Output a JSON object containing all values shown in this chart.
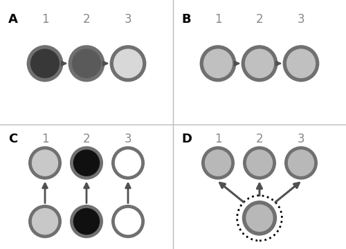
{
  "bg_color": "#ffffff",
  "label_color": "#888888",
  "arrow_color": "#505050",
  "A_fill_colors": [
    "#383838",
    "#5a5a5a",
    "#d8d8d8"
  ],
  "A_ring_color": "#707070",
  "B_fill_colors": [
    "#c0c0c0",
    "#c0c0c0",
    "#c0c0c0"
  ],
  "B_ring_color": "#707070",
  "C_top_fills": [
    "#c8c8c8",
    "#101010",
    "#ffffff"
  ],
  "C_bot_fills": [
    "#c8c8c8",
    "#101010",
    "#ffffff"
  ],
  "C_ring_color": "#707070",
  "D_top_fills": [
    "#b8b8b8",
    "#b8b8b8",
    "#b8b8b8"
  ],
  "D_bot_fill": "#b8b8b8",
  "D_ring_color": "#707070",
  "divider_color": "#bbbbbb",
  "time_labels": [
    "1",
    "2",
    "3"
  ],
  "panel_labels": [
    "A",
    "B",
    "C",
    "D"
  ]
}
